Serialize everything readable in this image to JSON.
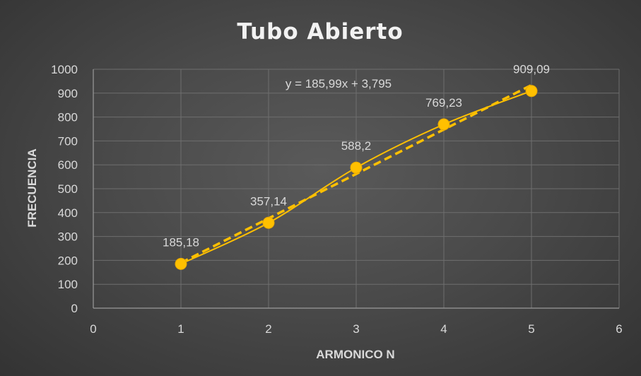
{
  "chart_data": {
    "type": "scatter",
    "title": "Tubo Abierto",
    "xlabel": "ARMONICO N",
    "ylabel": "FRECUENCIA",
    "xlim": [
      0,
      6
    ],
    "ylim": [
      0,
      1000
    ],
    "x_ticks": [
      "0",
      "1",
      "2",
      "3",
      "4",
      "5",
      "6"
    ],
    "y_ticks": [
      "0",
      "100",
      "200",
      "300",
      "400",
      "500",
      "600",
      "700",
      "800",
      "900",
      "1000"
    ],
    "grid": true,
    "series": [
      {
        "x": [
          1,
          2,
          3,
          4,
          5
        ],
        "values": [
          185.18,
          357.14,
          588.2,
          769.23,
          909.09
        ],
        "data_labels": [
          "185,18",
          "357,14",
          "588,2",
          "769,23",
          "909,09"
        ],
        "line": "smooth",
        "color": "#ffc000"
      }
    ],
    "trendline": {
      "type": "linear",
      "slope": 185.99,
      "intercept": 3.795,
      "equation": "y = 185,99x + 3,795",
      "color": "#ffc000",
      "style": "dashed"
    }
  }
}
